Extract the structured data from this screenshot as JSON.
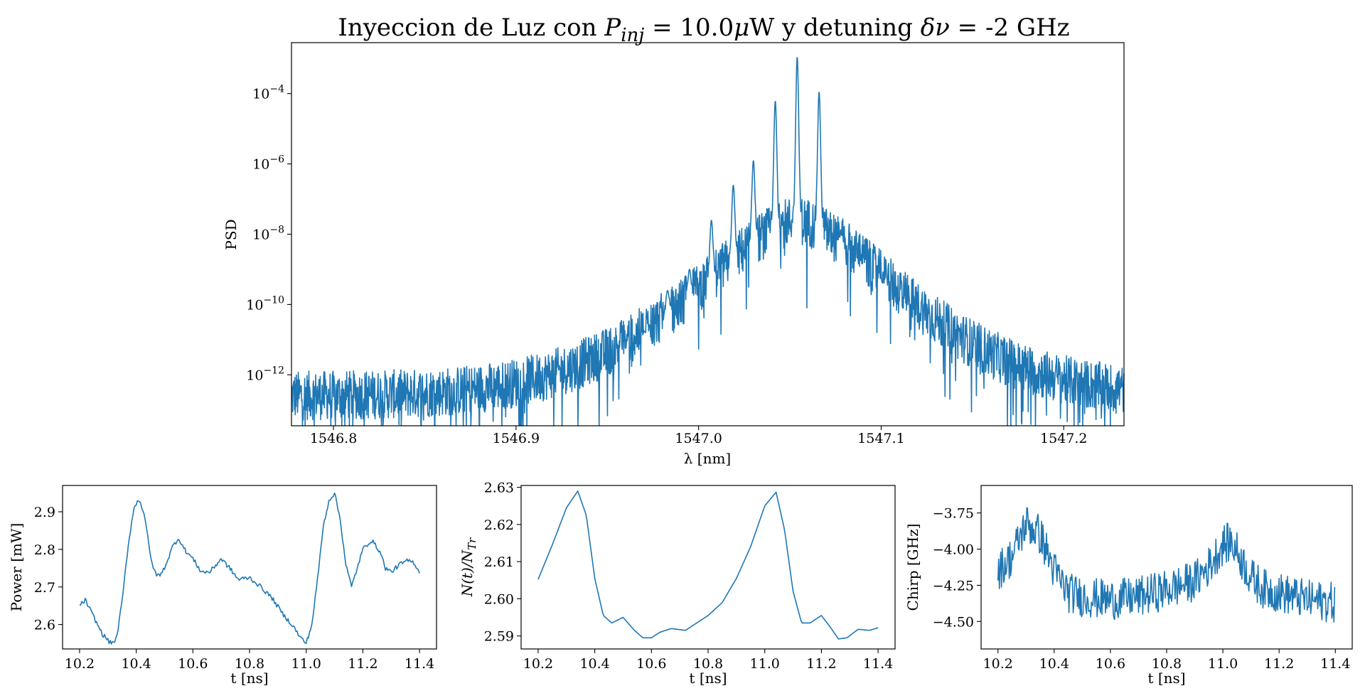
{
  "figure": {
    "title_main": "Inyeccion de Luz con ",
    "title_pinj": "P",
    "title_pinj_sub": "inj",
    "title_mid": " =  10.0",
    "title_mu": "μ",
    "title_unit": "W y detuning ",
    "title_delta": "δν",
    "title_tail": " = -2 GHz",
    "line_color": "#1f77b4"
  },
  "chart_data": [
    {
      "type": "line",
      "id": "spectrum",
      "title": "Inyeccion de Luz con P_inj =  10.0μW y detuning δν = -2 GHz",
      "xlabel": "λ [nm]",
      "ylabel": "PSD",
      "yscale": "log",
      "xlim": [
        1546.777,
        1547.233
      ],
      "ylim_log10": [
        -13.45,
        -2.55
      ],
      "xticks": [
        1546.8,
        1546.9,
        1547.0,
        1547.1,
        1547.2
      ],
      "xtick_labels": [
        "1546.8",
        "1546.9",
        "1547.0",
        "1547.1",
        "1547.2"
      ],
      "yticks_exp": [
        -4,
        -6,
        -8,
        -10,
        -12
      ],
      "ytick_base": "10",
      "ytick_exp_labels": [
        "−4",
        "−6",
        "−8",
        "−10",
        "−12"
      ],
      "series": [
        {
          "center_nm": 1547.054,
          "floor_log10": -12.6,
          "peaks": [
            {
              "x": 1547.054,
              "log10": -2.95
            },
            {
              "x": 1547.066,
              "log10": -3.95
            },
            {
              "x": 1547.042,
              "log10": -4.2
            },
            {
              "x": 1547.03,
              "log10": -5.9
            },
            {
              "x": 1547.019,
              "log10": -6.6
            },
            {
              "x": 1547.007,
              "log10": -7.6
            },
            {
              "x": 1546.995,
              "log10": -9.0
            },
            {
              "x": 1546.983,
              "log10": -9.6
            },
            {
              "x": 1546.971,
              "log10": -10.8
            },
            {
              "x": 1546.959,
              "log10": -11.4
            },
            {
              "x": 1547.078,
              "log10": -8.0
            },
            {
              "x": 1547.089,
              "log10": -9.2
            },
            {
              "x": 1547.101,
              "log10": -9.4
            },
            {
              "x": 1547.113,
              "log10": -11.0
            }
          ]
        }
      ]
    },
    {
      "type": "line",
      "id": "power",
      "xlabel": "t [ns]",
      "ylabel": "Power [mW]",
      "xlim": [
        10.14,
        11.46
      ],
      "ylim": [
        2.535,
        2.97
      ],
      "xticks": [
        10.2,
        10.4,
        10.6,
        10.8,
        11.0,
        11.2,
        11.4
      ],
      "xtick_labels": [
        "10.2",
        "10.4",
        "10.6",
        "10.8",
        "11.0",
        "11.2",
        "11.4"
      ],
      "yticks": [
        2.6,
        2.7,
        2.8,
        2.9
      ],
      "ytick_labels": [
        "2.6",
        "2.7",
        "2.8",
        "2.9"
      ],
      "series": [
        {
          "x": [
            10.2,
            10.22,
            10.25,
            10.28,
            10.31,
            10.33,
            10.35,
            10.37,
            10.39,
            10.41,
            10.43,
            10.45,
            10.47,
            10.49,
            10.51,
            10.53,
            10.55,
            10.57,
            10.6,
            10.63,
            10.66,
            10.7,
            10.73,
            10.76,
            10.8,
            10.84,
            10.88,
            10.92,
            10.95,
            10.98,
            11.0,
            11.02,
            11.04,
            11.06,
            11.08,
            11.1,
            11.12,
            11.14,
            11.16,
            11.18,
            11.2,
            11.23,
            11.26,
            11.28,
            11.3,
            11.33,
            11.36,
            11.38,
            11.4
          ],
          "y": [
            2.65,
            2.665,
            2.62,
            2.575,
            2.55,
            2.56,
            2.66,
            2.8,
            2.905,
            2.935,
            2.89,
            2.78,
            2.73,
            2.735,
            2.77,
            2.81,
            2.83,
            2.8,
            2.775,
            2.74,
            2.74,
            2.775,
            2.75,
            2.72,
            2.725,
            2.7,
            2.67,
            2.625,
            2.6,
            2.565,
            2.55,
            2.6,
            2.72,
            2.86,
            2.93,
            2.95,
            2.88,
            2.76,
            2.7,
            2.75,
            2.8,
            2.825,
            2.795,
            2.75,
            2.74,
            2.76,
            2.77,
            2.765,
            2.74
          ]
        }
      ]
    },
    {
      "type": "line",
      "id": "carriers",
      "xlabel": "t [ns]",
      "ylabel_main": "N(t)/N",
      "ylabel_sub": "Tr",
      "xlim": [
        10.14,
        11.46
      ],
      "ylim": [
        2.5865,
        2.6305
      ],
      "xticks": [
        10.2,
        10.4,
        10.6,
        10.8,
        11.0,
        11.2,
        11.4
      ],
      "xtick_labels": [
        "10.2",
        "10.4",
        "10.6",
        "10.8",
        "11.0",
        "11.2",
        "11.4"
      ],
      "yticks": [
        2.59,
        2.6,
        2.61,
        2.62,
        2.63
      ],
      "ytick_labels": [
        "2.59",
        "2.60",
        "2.61",
        "2.62",
        "2.63"
      ],
      "series": [
        {
          "x": [
            10.2,
            10.25,
            10.3,
            10.34,
            10.37,
            10.4,
            10.43,
            10.46,
            10.5,
            10.54,
            10.57,
            10.6,
            10.63,
            10.67,
            10.72,
            10.75,
            10.8,
            10.85,
            10.9,
            10.95,
            11.0,
            11.04,
            11.07,
            11.1,
            11.13,
            11.16,
            11.2,
            11.23,
            11.26,
            11.29,
            11.33,
            11.37,
            11.4
          ],
          "y": [
            2.6052,
            2.6145,
            2.6245,
            2.629,
            2.6225,
            2.6055,
            2.5955,
            2.5935,
            2.595,
            2.5915,
            2.5895,
            2.5895,
            2.591,
            2.592,
            2.5915,
            2.593,
            2.5955,
            2.599,
            2.6055,
            2.614,
            2.625,
            2.6287,
            2.6185,
            2.602,
            2.5935,
            2.5935,
            2.5955,
            2.5925,
            2.5892,
            2.5895,
            2.5918,
            2.5915,
            2.5922
          ]
        }
      ]
    },
    {
      "type": "line",
      "id": "chirp",
      "xlabel": "t [ns]",
      "ylabel": "Chirp [GHz]",
      "xlim": [
        10.14,
        11.46
      ],
      "ylim": [
        -4.69,
        -3.56
      ],
      "xticks": [
        10.2,
        10.4,
        10.6,
        10.8,
        11.0,
        11.2,
        11.4
      ],
      "xtick_labels": [
        "10.2",
        "10.4",
        "10.6",
        "10.8",
        "11.0",
        "11.2",
        "11.4"
      ],
      "yticks": [
        -3.75,
        -4.0,
        -4.25,
        -4.5
      ],
      "ytick_labels": [
        "−3.75",
        "−4.00",
        "−4.25",
        "−4.50"
      ],
      "series": [
        {
          "x": [
            10.2,
            10.25,
            10.3,
            10.35,
            10.4,
            10.45,
            10.5,
            10.6,
            10.7,
            10.8,
            10.9,
            10.95,
            11.0,
            11.03,
            11.06,
            11.1,
            11.15,
            11.2,
            11.3,
            11.4
          ],
          "y": [
            -4.15,
            -4.05,
            -3.82,
            -3.9,
            -4.15,
            -4.3,
            -4.33,
            -4.35,
            -4.33,
            -4.28,
            -4.22,
            -4.12,
            -3.97,
            -3.95,
            -4.05,
            -4.2,
            -4.28,
            -4.3,
            -4.35,
            -4.37
          ]
        }
      ]
    }
  ]
}
